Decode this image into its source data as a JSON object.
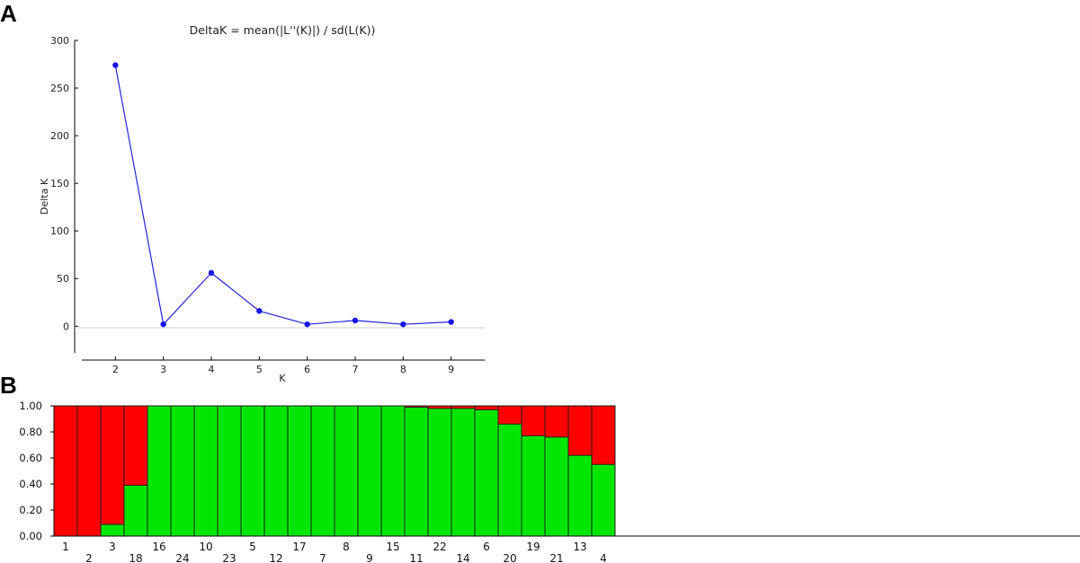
{
  "panels": {
    "a_letter": "A",
    "b_letter": "B"
  },
  "chart_data": [
    {
      "type": "line",
      "title": "DeltaK = mean(|L''(K)|) / sd(L(K))",
      "xlabel": "K",
      "ylabel": "Delta K",
      "x": [
        2,
        3,
        4,
        5,
        6,
        7,
        8,
        9
      ],
      "y": [
        274,
        2,
        56,
        16,
        2,
        6,
        2,
        4.5
      ],
      "xlim": [
        1.3,
        9.7
      ],
      "ylim": [
        -28,
        300
      ],
      "yticks": [
        0,
        50,
        100,
        150,
        200,
        250,
        300
      ],
      "xticks": [
        2,
        3,
        4,
        5,
        6,
        7,
        8,
        9
      ],
      "colors": {
        "line": "#2222dd",
        "marker": "#1515e8",
        "zero_line": "#cccccc"
      },
      "grid": false
    },
    {
      "type": "bar",
      "stacked": true,
      "categories": [
        "1",
        "2",
        "3",
        "18",
        "16",
        "24",
        "10",
        "23",
        "5",
        "12",
        "17",
        "7",
        "8",
        "9",
        "15",
        "11",
        "22",
        "14",
        "6",
        "20",
        "19",
        "21",
        "13",
        "4"
      ],
      "series": [
        {
          "color": "#00e600",
          "values": [
            0.0,
            0.0,
            0.09,
            0.39,
            1.0,
            1.0,
            1.0,
            1.0,
            1.0,
            1.0,
            1.0,
            1.0,
            1.0,
            1.0,
            1.0,
            0.99,
            0.98,
            0.98,
            0.97,
            0.86,
            0.77,
            0.76,
            0.62,
            0.55
          ]
        },
        {
          "color": "#ff0000",
          "values": [
            1.0,
            1.0,
            0.91,
            0.61,
            0.0,
            0.0,
            0.0,
            0.0,
            0.0,
            0.0,
            0.0,
            0.0,
            0.0,
            0.0,
            0.0,
            0.01,
            0.02,
            0.02,
            0.03,
            0.14,
            0.23,
            0.24,
            0.38,
            0.45
          ]
        }
      ],
      "ylim": [
        0,
        1
      ],
      "ytick_labels": [
        "0.00",
        "0.20",
        "0.40",
        "0.60",
        "0.80",
        "1.00"
      ],
      "grid": false
    }
  ]
}
